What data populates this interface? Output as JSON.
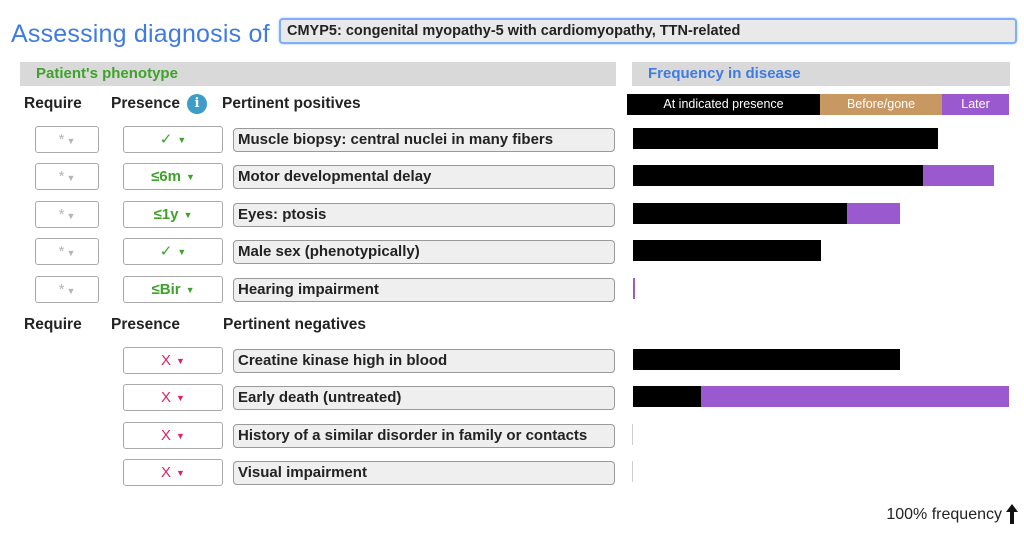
{
  "header": {
    "title": "Assessing diagnosis of",
    "diagnosis": "CMYP5: congenital myopathy-5 with cardiomyopathy, TTN-related"
  },
  "sections": {
    "phenotype": "Patient's phenotype",
    "frequency": "Frequency in disease"
  },
  "columns": {
    "require": "Require",
    "presence": "Presence",
    "positives": "Pertinent positives",
    "negatives": "Pertinent negatives",
    "info_glyph": "i"
  },
  "legend": {
    "at_presence": "At indicated presence",
    "before_gone": "Before/gone",
    "later": "Later"
  },
  "positives": [
    {
      "require": "*",
      "presence": "✓",
      "feature": "Muscle biopsy: central nuclei in many fibers",
      "freq_at": 0.81,
      "freq_later": 0.0
    },
    {
      "require": "*",
      "presence": "≤6m",
      "feature": "Motor developmental delay",
      "freq_at": 0.77,
      "freq_later": 0.19
    },
    {
      "require": "*",
      "presence": "≤1y",
      "feature": "Eyes: ptosis",
      "freq_at": 0.57,
      "freq_later": 0.14
    },
    {
      "require": "*",
      "presence": "✓",
      "feature": "Male sex (phenotypically)",
      "freq_at": 0.5,
      "freq_later": 0.0
    },
    {
      "require": "*",
      "presence": "≤Bir",
      "feature": "Hearing impairment",
      "freq_at": 0.0,
      "freq_later": 0.005
    }
  ],
  "negatives": [
    {
      "presence": "X",
      "feature": "Creatine kinase high in blood",
      "freq_at": 0.71,
      "freq_later": 0.0
    },
    {
      "presence": "X",
      "feature": "Early death (untreated)",
      "freq_at": 0.18,
      "freq_later": 0.82
    },
    {
      "presence": "X",
      "feature": "History of a similar disorder in family or contacts",
      "freq_at": 0.0,
      "freq_later": 0.0
    },
    {
      "presence": "X",
      "feature": "Visual impairment",
      "freq_at": 0.0,
      "freq_later": 0.0
    }
  ],
  "footer": {
    "scale": "100% frequency"
  },
  "colors": {
    "title_blue": "#3f7be0",
    "section_green": "#3fa22a",
    "negative_red": "#e0245e",
    "bar_black": "#000000",
    "bar_tan": "#c79862",
    "bar_purple": "#9b59d0",
    "info_blue": "#3d9cc9"
  },
  "icons": {
    "dropdown": "caret-down-icon",
    "info": "info-icon",
    "scale": "arrow-up-icon"
  }
}
